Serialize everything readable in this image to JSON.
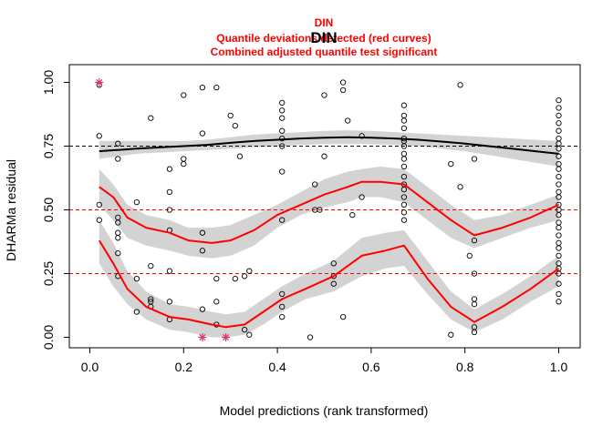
{
  "chart_data": {
    "type": "scatter",
    "title": "DIN",
    "subtitle_lines": [
      "DIN",
      "Quantile deviations detected (red curves)",
      "Combined adjusted quantile test significant"
    ],
    "xlabel": "Model predictions (rank transformed)",
    "ylabel": "DHARMa residual",
    "xlim": [
      -0.04,
      1.04
    ],
    "ylim": [
      -0.04,
      1.04
    ],
    "x_ticks": [
      "0.0",
      "0.2",
      "0.4",
      "0.6",
      "0.8",
      "1.0"
    ],
    "y_ticks": [
      "0.00",
      "0.25",
      "0.50",
      "0.75",
      "1.00"
    ],
    "grid": false,
    "colors": {
      "points": "#000000",
      "outliers": "#d9366b",
      "fitted_quantiles": "#ff0000",
      "median_curve_ok": "#000000",
      "band": "#d3d3d3",
      "reference_lines": "#ff0000",
      "upper_reference": "#000000",
      "title_red": "#ff0000"
    },
    "reference_lines": [
      0.25,
      0.5,
      0.75
    ],
    "points": [
      [
        0.02,
        0.79
      ],
      [
        0.02,
        0.52
      ],
      [
        0.02,
        0.46
      ],
      [
        0.02,
        0.99
      ],
      [
        0.06,
        0.76
      ],
      [
        0.06,
        0.7
      ],
      [
        0.06,
        0.47
      ],
      [
        0.06,
        0.45
      ],
      [
        0.06,
        0.41
      ],
      [
        0.06,
        0.39
      ],
      [
        0.06,
        0.33
      ],
      [
        0.06,
        0.24
      ],
      [
        0.1,
        0.53
      ],
      [
        0.1,
        0.23
      ],
      [
        0.1,
        0.1
      ],
      [
        0.13,
        0.86
      ],
      [
        0.13,
        0.28
      ],
      [
        0.13,
        0.15
      ],
      [
        0.13,
        0.14
      ],
      [
        0.13,
        0.12
      ],
      [
        0.17,
        0.66
      ],
      [
        0.17,
        0.57
      ],
      [
        0.17,
        0.5
      ],
      [
        0.17,
        0.42
      ],
      [
        0.17,
        0.26
      ],
      [
        0.17,
        0.14
      ],
      [
        0.17,
        0.07
      ],
      [
        0.2,
        0.95
      ],
      [
        0.2,
        0.7
      ],
      [
        0.2,
        0.68
      ],
      [
        0.24,
        0.98
      ],
      [
        0.24,
        0.8
      ],
      [
        0.24,
        0.41
      ],
      [
        0.24,
        0.34
      ],
      [
        0.24,
        0.11
      ],
      [
        0.27,
        0.98
      ],
      [
        0.27,
        0.23
      ],
      [
        0.27,
        0.14
      ],
      [
        0.27,
        0.05
      ],
      [
        0.3,
        0.87
      ],
      [
        0.31,
        0.83
      ],
      [
        0.31,
        0.23
      ],
      [
        0.32,
        0.71
      ],
      [
        0.33,
        0.24
      ],
      [
        0.33,
        0.03
      ],
      [
        0.34,
        0.26
      ],
      [
        0.34,
        0.01
      ],
      [
        0.41,
        0.92
      ],
      [
        0.41,
        0.89
      ],
      [
        0.41,
        0.86
      ],
      [
        0.41,
        0.81
      ],
      [
        0.41,
        0.78
      ],
      [
        0.41,
        0.75
      ],
      [
        0.41,
        0.65
      ],
      [
        0.41,
        0.46
      ],
      [
        0.41,
        0.17
      ],
      [
        0.41,
        0.12
      ],
      [
        0.41,
        0.08
      ],
      [
        0.47,
        0.0
      ],
      [
        0.48,
        0.6
      ],
      [
        0.48,
        0.5
      ],
      [
        0.49,
        0.5
      ],
      [
        0.5,
        0.95
      ],
      [
        0.5,
        0.71
      ],
      [
        0.52,
        0.29
      ],
      [
        0.52,
        0.24
      ],
      [
        0.52,
        0.21
      ],
      [
        0.54,
        1.0
      ],
      [
        0.54,
        0.97
      ],
      [
        0.54,
        0.08
      ],
      [
        0.55,
        0.85
      ],
      [
        0.56,
        0.48
      ],
      [
        0.58,
        0.55
      ],
      [
        0.58,
        0.79
      ],
      [
        0.67,
        0.91
      ],
      [
        0.67,
        0.87
      ],
      [
        0.67,
        0.85
      ],
      [
        0.67,
        0.82
      ],
      [
        0.67,
        0.78
      ],
      [
        0.67,
        0.77
      ],
      [
        0.67,
        0.75
      ],
      [
        0.67,
        0.72
      ],
      [
        0.67,
        0.7
      ],
      [
        0.67,
        0.67
      ],
      [
        0.67,
        0.63
      ],
      [
        0.67,
        0.6
      ],
      [
        0.67,
        0.58
      ],
      [
        0.67,
        0.55
      ],
      [
        0.67,
        0.52
      ],
      [
        0.67,
        0.49
      ],
      [
        0.67,
        0.46
      ],
      [
        0.77,
        0.68
      ],
      [
        0.77,
        0.01
      ],
      [
        0.79,
        0.99
      ],
      [
        0.79,
        0.59
      ],
      [
        0.81,
        0.32
      ],
      [
        0.82,
        0.7
      ],
      [
        0.82,
        0.38
      ],
      [
        0.82,
        0.25
      ],
      [
        0.82,
        0.15
      ],
      [
        0.82,
        0.13
      ],
      [
        0.82,
        0.04
      ],
      [
        0.82,
        0.02
      ],
      [
        1.0,
        0.93
      ],
      [
        1.0,
        0.9
      ],
      [
        1.0,
        0.87
      ],
      [
        1.0,
        0.84
      ],
      [
        1.0,
        0.81
      ],
      [
        1.0,
        0.78
      ],
      [
        1.0,
        0.76
      ],
      [
        1.0,
        0.74
      ],
      [
        1.0,
        0.71
      ],
      [
        1.0,
        0.68
      ],
      [
        1.0,
        0.66
      ],
      [
        1.0,
        0.63
      ],
      [
        1.0,
        0.6
      ],
      [
        1.0,
        0.57
      ],
      [
        1.0,
        0.55
      ],
      [
        1.0,
        0.52
      ],
      [
        1.0,
        0.5
      ],
      [
        1.0,
        0.48
      ],
      [
        1.0,
        0.45
      ],
      [
        1.0,
        0.43
      ],
      [
        1.0,
        0.4
      ],
      [
        1.0,
        0.37
      ],
      [
        1.0,
        0.35
      ],
      [
        1.0,
        0.32
      ],
      [
        1.0,
        0.29
      ],
      [
        1.0,
        0.27
      ],
      [
        1.0,
        0.25
      ],
      [
        1.0,
        0.21
      ],
      [
        1.0,
        0.17
      ],
      [
        1.0,
        0.14
      ]
    ],
    "outliers": [
      [
        0.02,
        1.0
      ],
      [
        0.24,
        0.0
      ],
      [
        0.29,
        0.0
      ]
    ],
    "curves": [
      {
        "quantile": 0.75,
        "x": [
          0.02,
          0.06,
          0.1,
          0.15,
          0.2,
          0.25,
          0.3,
          0.35,
          0.4,
          0.45,
          0.5,
          0.55,
          0.6,
          0.65,
          0.7,
          0.75,
          0.8,
          0.85,
          0.9,
          0.95,
          1.0
        ],
        "y": [
          0.73,
          0.735,
          0.74,
          0.745,
          0.75,
          0.755,
          0.763,
          0.77,
          0.775,
          0.78,
          0.783,
          0.785,
          0.783,
          0.78,
          0.775,
          0.768,
          0.76,
          0.75,
          0.74,
          0.73,
          0.72
        ],
        "lo": [
          0.7,
          0.71,
          0.72,
          0.725,
          0.73,
          0.735,
          0.74,
          0.745,
          0.75,
          0.755,
          0.757,
          0.758,
          0.757,
          0.755,
          0.75,
          0.74,
          0.73,
          0.715,
          0.7,
          0.685,
          0.67
        ],
        "hi": [
          0.77,
          0.77,
          0.77,
          0.77,
          0.77,
          0.775,
          0.785,
          0.795,
          0.8,
          0.805,
          0.81,
          0.812,
          0.81,
          0.805,
          0.8,
          0.795,
          0.79,
          0.785,
          0.78,
          0.775,
          0.77
        ]
      },
      {
        "quantile": 0.5,
        "x": [
          0.02,
          0.05,
          0.08,
          0.12,
          0.17,
          0.21,
          0.26,
          0.3,
          0.35,
          0.4,
          0.45,
          0.5,
          0.55,
          0.58,
          0.62,
          0.67,
          0.72,
          0.77,
          0.82,
          0.88,
          0.94,
          1.0
        ],
        "y": [
          0.59,
          0.55,
          0.47,
          0.43,
          0.41,
          0.38,
          0.37,
          0.38,
          0.42,
          0.48,
          0.52,
          0.56,
          0.59,
          0.61,
          0.61,
          0.6,
          0.53,
          0.46,
          0.4,
          0.43,
          0.47,
          0.52
        ],
        "lo": [
          0.52,
          0.46,
          0.39,
          0.36,
          0.34,
          0.32,
          0.31,
          0.32,
          0.36,
          0.43,
          0.48,
          0.51,
          0.53,
          0.55,
          0.55,
          0.53,
          0.46,
          0.39,
          0.35,
          0.39,
          0.43,
          0.46
        ],
        "hi": [
          0.66,
          0.6,
          0.52,
          0.48,
          0.46,
          0.43,
          0.43,
          0.44,
          0.48,
          0.52,
          0.57,
          0.62,
          0.65,
          0.66,
          0.67,
          0.66,
          0.59,
          0.52,
          0.46,
          0.48,
          0.52,
          0.56
        ]
      },
      {
        "quantile": 0.25,
        "x": [
          0.02,
          0.05,
          0.08,
          0.12,
          0.17,
          0.21,
          0.26,
          0.29,
          0.33,
          0.37,
          0.41,
          0.46,
          0.52,
          0.58,
          0.63,
          0.67,
          0.72,
          0.77,
          0.82,
          0.88,
          0.94,
          1.0
        ],
        "y": [
          0.38,
          0.29,
          0.19,
          0.12,
          0.08,
          0.07,
          0.05,
          0.04,
          0.05,
          0.1,
          0.15,
          0.19,
          0.24,
          0.32,
          0.34,
          0.36,
          0.23,
          0.12,
          0.06,
          0.12,
          0.19,
          0.27
        ],
        "lo": [
          0.29,
          0.2,
          0.13,
          0.07,
          0.03,
          0.02,
          0.0,
          0.0,
          0.01,
          0.05,
          0.1,
          0.15,
          0.18,
          0.24,
          0.27,
          0.28,
          0.17,
          0.07,
          0.02,
          0.07,
          0.14,
          0.2
        ],
        "hi": [
          0.46,
          0.37,
          0.26,
          0.18,
          0.13,
          0.12,
          0.1,
          0.09,
          0.1,
          0.15,
          0.2,
          0.25,
          0.3,
          0.39,
          0.41,
          0.42,
          0.3,
          0.18,
          0.11,
          0.17,
          0.24,
          0.32
        ]
      }
    ]
  }
}
